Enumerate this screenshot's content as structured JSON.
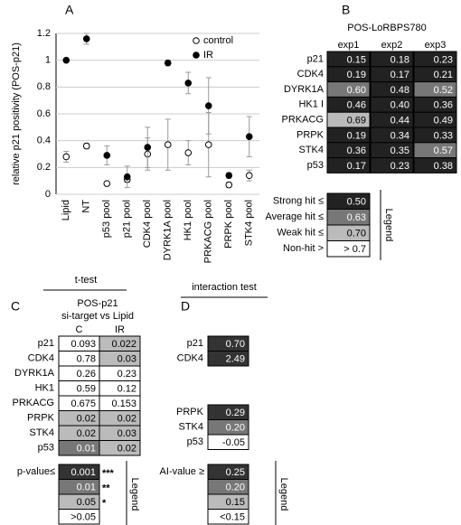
{
  "chart_data": {
    "type": "scatter",
    "panel": "A",
    "ylabel": "relative p21 positivity (POS-p21)",
    "categories": [
      "Lipid",
      "NT",
      "p53 pool",
      "p21 pool",
      "CDK4 pool",
      "DYRK1A pool",
      "HK1 pool",
      "PRKACG pool",
      "PRPK pool",
      "STK4 pool"
    ],
    "series": [
      {
        "name": "control",
        "color": "#ffffff",
        "values": [
          0.28,
          0.36,
          0.08,
          0.11,
          0.3,
          0.37,
          0.31,
          0.37,
          0.07,
          0.14
        ],
        "errors": [
          0.04,
          0.02,
          0.01,
          0.02,
          0.12,
          0.19,
          0.09,
          0.24,
          0.02,
          0.04
        ]
      },
      {
        "name": "IR",
        "color": "#000000",
        "values": [
          1.0,
          1.16,
          0.29,
          0.13,
          0.35,
          0.98,
          0.83,
          0.66,
          0.14,
          0.43
        ],
        "errors": [
          0.01,
          0.04,
          0.07,
          0.08,
          0.15,
          0.02,
          0.08,
          0.21,
          0.02,
          0.15
        ]
      }
    ],
    "error_color": "#999999",
    "ylim": [
      0,
      1.2
    ],
    "yticks": [
      0,
      0.2,
      0.4,
      0.6,
      0.8,
      1,
      1.2
    ],
    "grid": true,
    "legend": "top-right"
  },
  "table_b": {
    "panel": "B",
    "title": "POS-LoRBPS780",
    "columns": [
      "exp1",
      "exp2",
      "exp3"
    ],
    "rows": [
      {
        "label": "p21",
        "cells": [
          "0.15",
          "0.18",
          "0.23"
        ]
      },
      {
        "label": "CDK4",
        "cells": [
          "0.19",
          "0.17",
          "0.21"
        ]
      },
      {
        "label": "DYRK1A",
        "cells": [
          "0.60",
          "0.48",
          "0.52"
        ]
      },
      {
        "label": "HK1 I",
        "cells": [
          "0.46",
          "0.40",
          "0.36"
        ]
      },
      {
        "label": "PRKACG",
        "cells": [
          "0.69",
          "0.44",
          "0.49"
        ]
      },
      {
        "label": "PRPK",
        "cells": [
          "0.19",
          "0.34",
          "0.33"
        ]
      },
      {
        "label": "STK4",
        "cells": [
          "0.36",
          "0.35",
          "0.57"
        ]
      },
      {
        "label": "p53",
        "cells": [
          "0.17",
          "0.23",
          "0.38"
        ]
      }
    ],
    "legend_title": "Legend",
    "legend": [
      {
        "label": "Strong hit ≤",
        "value": "0.50",
        "color": "#222222"
      },
      {
        "label": "Average hit ≤",
        "value": "0.63",
        "color": "#777777"
      },
      {
        "label": "Weak hit ≤",
        "value": "0.70",
        "color": "#bbbbbb"
      },
      {
        "label": "Non-hit >",
        "value": "> 0.7",
        "color": "#ffffff"
      }
    ]
  },
  "table_c": {
    "panel": "C",
    "test": "t-test",
    "title": [
      "POS-p21",
      "si-target vs Lipid"
    ],
    "columns": [
      "C",
      "IR"
    ],
    "rows": [
      {
        "label": "p21",
        "cells": [
          "0.093",
          "0.022"
        ]
      },
      {
        "label": "CDK4",
        "cells": [
          "0.78",
          "0.03"
        ]
      },
      {
        "label": "DYRK1A",
        "cells": [
          "0.26",
          "0.23"
        ]
      },
      {
        "label": "HK1",
        "cells": [
          "0.59",
          "0.12"
        ]
      },
      {
        "label": "PRKACG",
        "cells": [
          "0.675",
          "0.153"
        ]
      },
      {
        "label": "PRPK",
        "cells": [
          "0.02",
          "0.02"
        ]
      },
      {
        "label": "STK4",
        "cells": [
          "0.02",
          "0.03"
        ]
      },
      {
        "label": "p53",
        "cells": [
          "0.01",
          "0.02"
        ]
      }
    ],
    "legend_title": "Legend",
    "legend_header": "p-value≤",
    "legend": [
      {
        "value": "0.001",
        "stars": "***",
        "color": "#333333"
      },
      {
        "value": "0.01",
        "stars": "**",
        "color": "#777777"
      },
      {
        "value": "0.05",
        "stars": "*",
        "color": "#bbbbbb"
      },
      {
        "value": ">0.05",
        "color": "#ffffff"
      }
    ]
  },
  "table_d": {
    "panel": "D",
    "test": "interaction test",
    "groups": [
      [
        {
          "label": "p21",
          "value": "0.70"
        },
        {
          "label": "CDK4",
          "value": "2.49"
        }
      ],
      [
        {
          "label": "PRPK",
          "value": "0.29"
        },
        {
          "label": "STK4",
          "value": "0.20"
        },
        {
          "label": "p53",
          "value": "-0.05"
        }
      ]
    ],
    "legend_title": "Legend",
    "legend_header": "AI-value ≥",
    "legend": [
      {
        "value": "0.25",
        "color": "#333333"
      },
      {
        "value": "0.20",
        "color": "#777777"
      },
      {
        "value": "0.15",
        "color": "#bbbbbb"
      },
      {
        "value": "<0.15",
        "color": "#ffffff"
      }
    ]
  }
}
